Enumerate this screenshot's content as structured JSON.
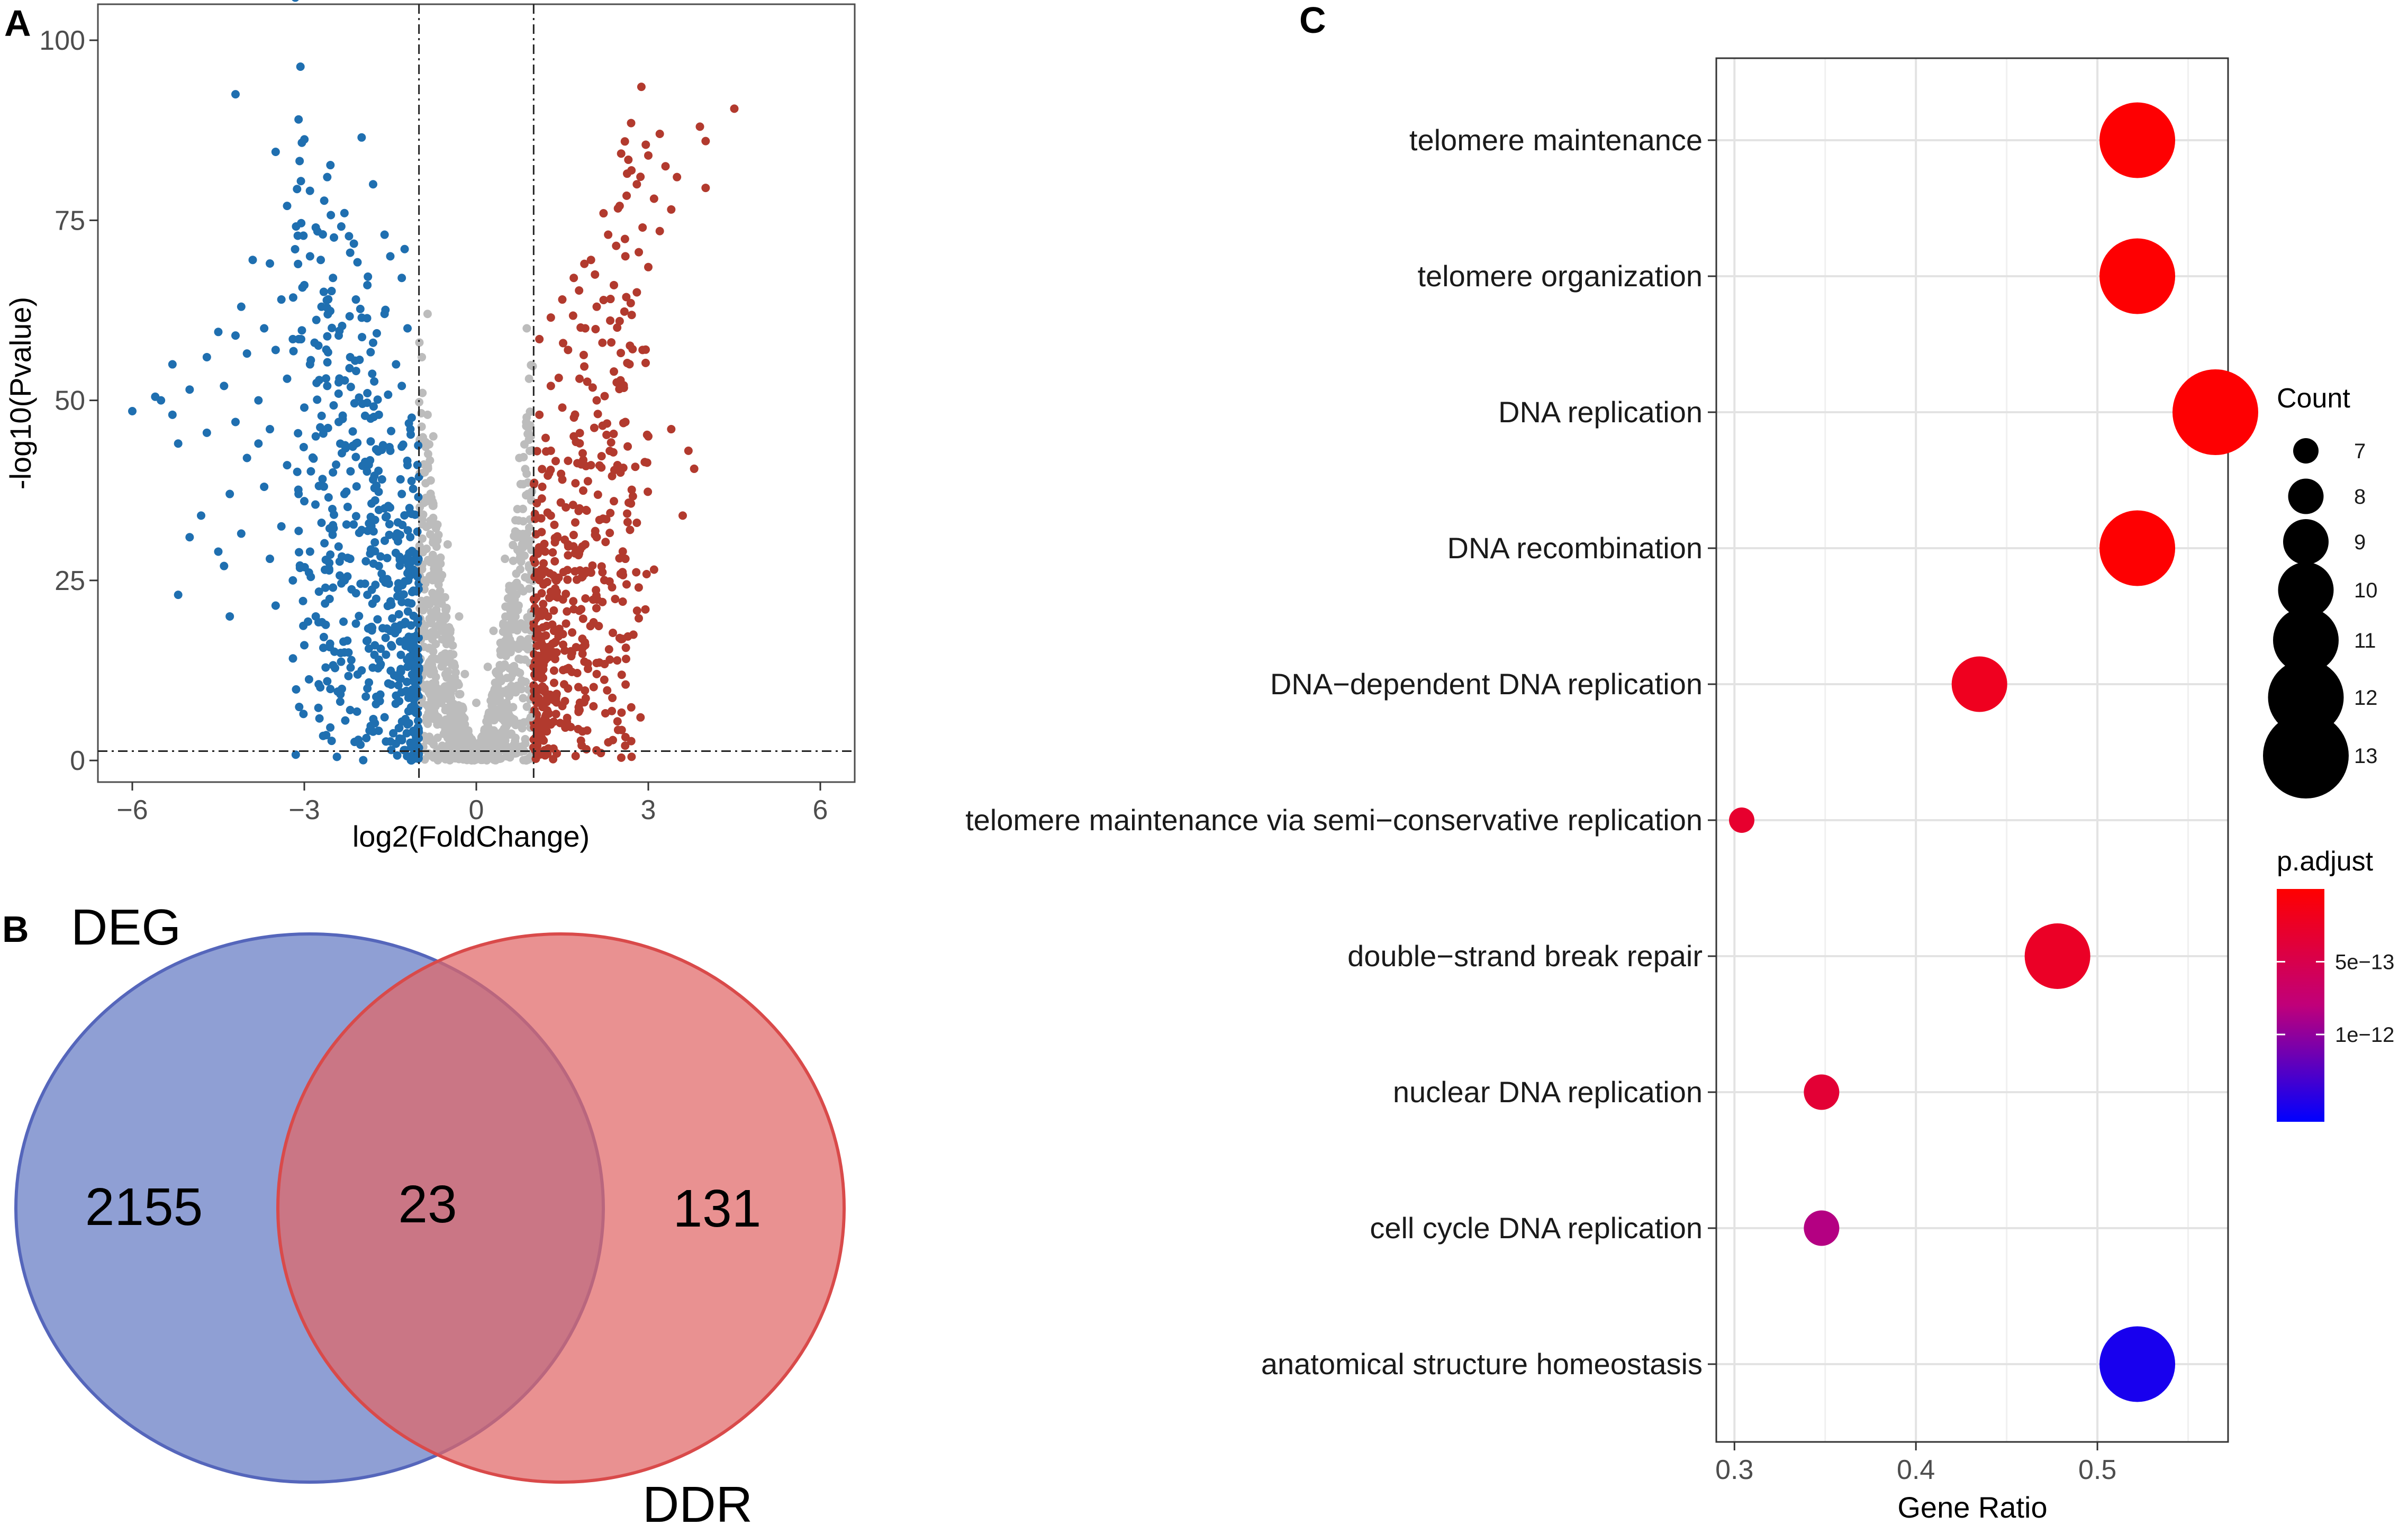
{
  "panels": {
    "a": "A",
    "b": "B",
    "c": "C"
  },
  "chart_data": [
    {
      "type": "scatter",
      "name": "volcano",
      "xlabel": "log2(FoldChange)",
      "ylabel": "-log10(Pvalue)",
      "xlim": [
        -6.6,
        6.6
      ],
      "ylim": [
        -3,
        105
      ],
      "xticks": [
        -6,
        -3,
        0,
        3,
        6
      ],
      "yticks": [
        0,
        25,
        50,
        75,
        100
      ],
      "xtick_labels": [
        "−6",
        "−3",
        "0",
        "3",
        "6"
      ],
      "ytick_labels": [
        "0",
        "25",
        "50",
        "75",
        "100"
      ],
      "thresholds": {
        "x": [
          -1,
          1
        ],
        "y": 1.3
      },
      "colors": {
        "down": "#1f6fb0",
        "up": "#b23a2e",
        "ns": "#bcbcbc"
      },
      "series": [
        {
          "name": "down",
          "color": "#1f6fb0",
          "points": [
            [
              -4.2,
              92.5
            ],
            [
              -3.1,
              89
            ],
            [
              -3.5,
              84.5
            ],
            [
              -2.0,
              86.5
            ],
            [
              -1.8,
              80
            ],
            [
              -2.6,
              81
            ],
            [
              -3.3,
              77
            ],
            [
              -2.8,
              74
            ],
            [
              -2.3,
              76
            ],
            [
              -1.6,
              73
            ],
            [
              -1.25,
              71
            ],
            [
              -3.6,
              69
            ],
            [
              -3.9,
              69.5
            ],
            [
              -2.9,
              70
            ],
            [
              -2.2,
              70.5
            ],
            [
              -1.5,
              70
            ],
            [
              -3.0,
              66
            ],
            [
              -2.5,
              67
            ],
            [
              -1.9,
              66
            ],
            [
              -1.3,
              67
            ],
            [
              -4.1,
              63
            ],
            [
              -3.4,
              64
            ],
            [
              -2.7,
              63
            ],
            [
              -2.1,
              64
            ],
            [
              -1.6,
              62
            ],
            [
              -4.5,
              59.5
            ],
            [
              -4.2,
              59
            ],
            [
              -3.7,
              60
            ],
            [
              -3.2,
              58.5
            ],
            [
              -2.4,
              59
            ],
            [
              -1.8,
              58
            ],
            [
              -1.2,
              60
            ],
            [
              -4.7,
              56
            ],
            [
              -4.0,
              56.5
            ],
            [
              -3.5,
              57
            ],
            [
              -2.9,
              55
            ],
            [
              -2.2,
              56
            ],
            [
              -1.4,
              55
            ],
            [
              -5.3,
              55
            ],
            [
              -3.3,
              53
            ],
            [
              -2.6,
              52
            ],
            [
              -1.9,
              51
            ],
            [
              -1.3,
              52
            ],
            [
              -6.0,
              48.5
            ],
            [
              -5.6,
              50.5
            ],
            [
              -5.5,
              50
            ],
            [
              -5.3,
              48
            ],
            [
              -5.0,
              51.5
            ],
            [
              -4.4,
              52
            ],
            [
              -3.8,
              50
            ],
            [
              -3.0,
              49
            ],
            [
              -2.4,
              47
            ],
            [
              -1.7,
              48
            ],
            [
              -1.15,
              46
            ],
            [
              -4.2,
              47
            ],
            [
              -3.6,
              46
            ],
            [
              -2.8,
              45
            ],
            [
              -2.1,
              44
            ],
            [
              -1.5,
              43
            ],
            [
              -5.2,
              44
            ],
            [
              -4.7,
              45.5
            ],
            [
              -4.0,
              42
            ],
            [
              -3.3,
              41
            ],
            [
              -2.5,
              40
            ],
            [
              -1.8,
              39
            ],
            [
              -1.2,
              41
            ],
            [
              -3.7,
              38
            ],
            [
              -3.0,
              36
            ],
            [
              -2.3,
              37
            ],
            [
              -1.6,
              35
            ],
            [
              -4.3,
              37
            ],
            [
              -2.7,
              33
            ],
            [
              -2.0,
              32
            ],
            [
              -1.4,
              31
            ],
            [
              -3.4,
              32.5
            ],
            [
              -4.8,
              34
            ],
            [
              -4.1,
              31.5
            ],
            [
              -5.0,
              31
            ],
            [
              -4.4,
              27
            ],
            [
              -3.6,
              28
            ],
            [
              -2.9,
              29
            ],
            [
              -2.2,
              28
            ],
            [
              -1.7,
              27
            ],
            [
              -1.2,
              26
            ],
            [
              -3.2,
              25
            ],
            [
              -2.5,
              24
            ],
            [
              -1.9,
              23
            ],
            [
              -1.3,
              22
            ],
            [
              -4.5,
              29
            ],
            [
              -5.2,
              23
            ],
            [
              -3.5,
              21.5
            ],
            [
              -2.8,
              20
            ],
            [
              -2.1,
              19
            ],
            [
              -1.5,
              18
            ],
            [
              -4.3,
              20
            ],
            [
              -3.0,
              16
            ],
            [
              -2.3,
              15
            ],
            [
              -1.7,
              14
            ],
            [
              -1.2,
              13
            ],
            [
              -2.6,
              11
            ],
            [
              -1.9,
              10
            ],
            [
              -1.4,
              9
            ],
            [
              -2.2,
              7
            ],
            [
              -1.6,
              6
            ],
            [
              -1.2,
              5
            ],
            [
              -1.8,
              4
            ],
            [
              -1.3,
              3
            ],
            [
              -2.0,
              12.5
            ],
            [
              -3.1,
              37
            ],
            [
              -3.8,
              44
            ],
            [
              -2.4,
              52.5
            ],
            [
              -1.3,
              37
            ]
          ]
        },
        {
          "name": "up",
          "color": "#b23a2e",
          "points": [
            [
              4.5,
              90.5
            ],
            [
              3.9,
              88
            ],
            [
              4.0,
              86
            ],
            [
              2.7,
              88.5
            ],
            [
              3.2,
              87
            ],
            [
              3.0,
              84
            ],
            [
              3.3,
              82.5
            ],
            [
              2.8,
              80
            ],
            [
              3.5,
              81
            ],
            [
              3.1,
              78
            ],
            [
              2.5,
              77
            ],
            [
              3.4,
              76.5
            ],
            [
              4.0,
              79.5
            ],
            [
              2.9,
              74
            ],
            [
              2.3,
              73
            ],
            [
              3.2,
              73.5
            ],
            [
              2.6,
              70
            ],
            [
              2.0,
              69.5
            ],
            [
              3.0,
              68.5
            ],
            [
              1.7,
              67
            ],
            [
              2.4,
              66
            ],
            [
              2.8,
              65
            ],
            [
              2.1,
              63
            ],
            [
              1.5,
              64
            ],
            [
              2.5,
              61
            ],
            [
              1.9,
              60
            ],
            [
              1.3,
              61.5
            ],
            [
              2.2,
              58
            ],
            [
              1.6,
              57
            ],
            [
              2.9,
              57
            ],
            [
              1.1,
              58.5
            ],
            [
              2.4,
              54
            ],
            [
              1.8,
              53
            ],
            [
              1.3,
              52
            ],
            [
              2.1,
              50
            ],
            [
              1.5,
              49
            ],
            [
              1.1,
              48
            ],
            [
              2.6,
              47
            ],
            [
              3.0,
              45
            ],
            [
              1.7,
              45
            ],
            [
              1.3,
              43
            ],
            [
              2.0,
              41
            ],
            [
              1.5,
              39
            ],
            [
              1.15,
              38
            ],
            [
              2.4,
              36
            ],
            [
              1.8,
              35
            ],
            [
              1.3,
              34
            ],
            [
              2.1,
              31
            ],
            [
              1.6,
              30
            ],
            [
              1.2,
              29
            ],
            [
              2.6,
              28
            ],
            [
              1.9,
              26
            ],
            [
              1.4,
              25
            ],
            [
              3.1,
              26.5
            ],
            [
              2.2,
              22
            ],
            [
              1.7,
              21
            ],
            [
              1.25,
              20
            ],
            [
              2.5,
              17
            ],
            [
              1.9,
              16
            ],
            [
              1.4,
              15
            ],
            [
              1.1,
              13
            ],
            [
              2.1,
              12
            ],
            [
              1.6,
              10
            ],
            [
              1.2,
              8
            ],
            [
              1.8,
              7
            ],
            [
              1.3,
              5
            ],
            [
              1.15,
              3
            ],
            [
              3.7,
              43
            ],
            [
              3.8,
              40.5
            ],
            [
              3.6,
              34
            ],
            [
              3.4,
              46
            ],
            [
              2.8,
              33
            ]
          ]
        },
        {
          "name": "ns",
          "color": "#bcbcbc",
          "points": [
            [
              -0.95,
              56
            ],
            [
              -0.85,
              48
            ],
            [
              -0.9,
              40
            ],
            [
              -0.8,
              33
            ],
            [
              -0.75,
              28
            ],
            [
              -0.7,
              22
            ],
            [
              -0.9,
              25
            ],
            [
              -0.6,
              18
            ],
            [
              -0.5,
              14
            ],
            [
              -0.4,
              10
            ],
            [
              -0.3,
              7
            ],
            [
              -0.2,
              5
            ],
            [
              -0.1,
              3
            ],
            [
              0,
              2
            ],
            [
              0.1,
              3
            ],
            [
              0.2,
              5
            ],
            [
              0.3,
              8
            ],
            [
              0.4,
              11
            ],
            [
              0.5,
              15
            ],
            [
              0.6,
              19
            ],
            [
              0.7,
              23
            ],
            [
              0.8,
              30
            ],
            [
              0.9,
              37
            ],
            [
              0.95,
              45
            ],
            [
              0.92,
              53
            ],
            [
              -0.8,
              12
            ],
            [
              -0.7,
              8
            ],
            [
              -0.6,
              5
            ],
            [
              -0.45,
              3
            ],
            [
              0.45,
              4
            ],
            [
              0.6,
              6
            ],
            [
              0.75,
              10
            ],
            [
              0.85,
              14
            ],
            [
              -0.95,
              18
            ],
            [
              0.95,
              20
            ],
            [
              -0.85,
              62
            ],
            [
              0.88,
              60
            ],
            [
              -0.2,
              12
            ],
            [
              0.2,
              13
            ],
            [
              0,
              8
            ],
            [
              -0.5,
              30
            ],
            [
              0.5,
              28
            ],
            [
              -0.3,
              20
            ],
            [
              0.3,
              18
            ],
            [
              -0.95,
              8
            ],
            [
              0.95,
              6
            ],
            [
              -0.75,
              45
            ],
            [
              0.75,
              42
            ]
          ]
        }
      ]
    },
    {
      "type": "venn",
      "name": "overlap",
      "sets": [
        {
          "label": "DEG",
          "only": 2155,
          "color": "#6a7fc6",
          "stroke": "#5566bb"
        },
        {
          "label": "DDR",
          "only": 131,
          "color": "#e06666",
          "stroke": "#d94a4a"
        }
      ],
      "intersection": 23
    },
    {
      "type": "scatter",
      "name": "go-dotplot",
      "xlabel": "Gene  Ratio",
      "xlim": [
        0.29,
        0.572
      ],
      "xticks": [
        0.3,
        0.4,
        0.5
      ],
      "xtick_labels": [
        "0.3",
        "0.4",
        "0.5"
      ],
      "categories": [
        "telomere maintenance",
        "telomere organization",
        "DNA replication",
        "DNA recombination",
        "DNA−dependent DNA replication",
        "telomere maintenance via semi−conservative replication",
        "double−strand break repair",
        "nuclear DNA replication",
        "cell cycle DNA replication",
        "anatomical structure homeostasis"
      ],
      "gene_ratio": [
        0.522,
        0.522,
        0.565,
        0.522,
        0.435,
        0.304,
        0.478,
        0.348,
        0.348,
        0.522
      ],
      "count": [
        12,
        12,
        13,
        12,
        10,
        7,
        11,
        8,
        8,
        12
      ],
      "p_adjust": [
        1e-14,
        1e-14,
        1e-14,
        1e-14,
        2e-13,
        3e-13,
        2.5e-13,
        3.5e-13,
        8.5e-13,
        1.5e-12
      ],
      "legend_count": {
        "title": "Count",
        "values": [
          7,
          8,
          9,
          10,
          11,
          12,
          13
        ],
        "labels": [
          "7",
          "8",
          "9",
          "10",
          "11",
          "12",
          "13"
        ]
      },
      "legend_padj": {
        "title": "p.adjust",
        "range": [
          1.6e-12,
          0
        ],
        "tick_values": [
          5e-13,
          1e-12
        ],
        "tick_labels": [
          "5e−13",
          "1e−12"
        ],
        "colors": {
          "low": "#ff0000",
          "high": "#0000ff"
        }
      }
    }
  ]
}
